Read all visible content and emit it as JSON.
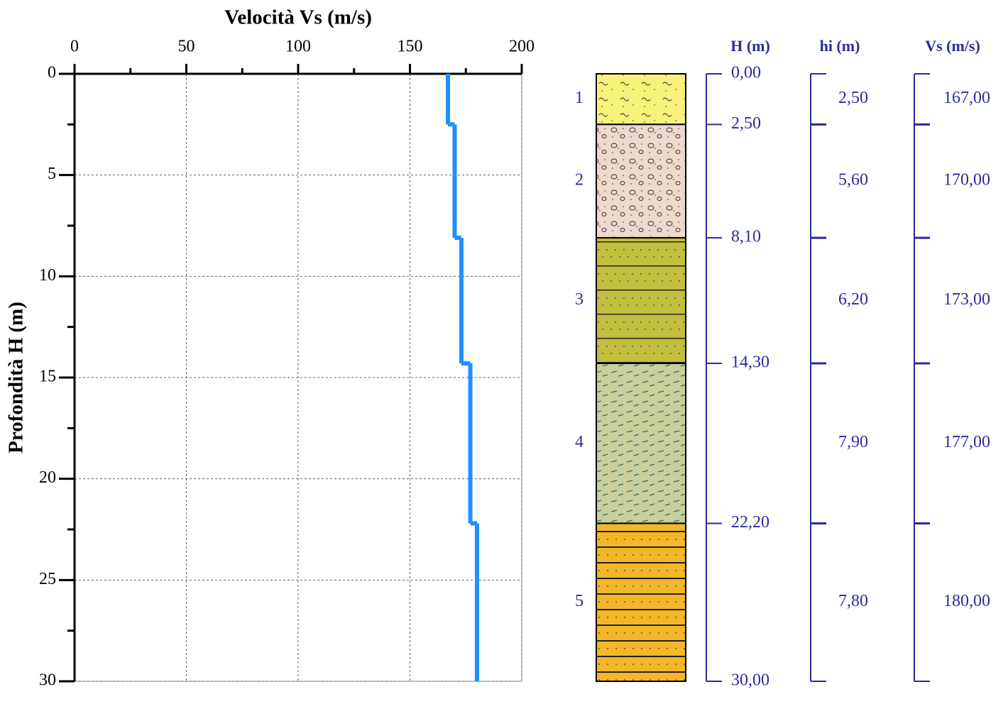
{
  "chart_data": {
    "type": "step-profile",
    "xlabel": "Velocità Vs (m/s)",
    "ylabel": "Profondità H (m)",
    "xlim": [
      0,
      200
    ],
    "xticks": [
      0,
      50,
      100,
      150,
      200
    ],
    "ylim": [
      0,
      30
    ],
    "yticks": [
      0,
      5,
      10,
      15,
      20,
      25,
      30
    ],
    "grid": true,
    "color": "#1e90ff",
    "column_headers": [
      "H (m)",
      "hi (m)",
      "Vs (m/s)"
    ],
    "layers": [
      "1",
      "2",
      "3",
      "4",
      "5"
    ],
    "depths": [
      {
        "value": 0,
        "label": "0,00"
      },
      {
        "value": 2.5,
        "label": "2,50"
      },
      {
        "value": 8.1,
        "label": "8,10"
      },
      {
        "value": 14.3,
        "label": "14,30"
      },
      {
        "value": 22.2,
        "label": "22,20"
      },
      {
        "value": 30,
        "label": "30,00"
      }
    ],
    "thicknesses": [
      {
        "value": 2.5,
        "label": "2,50"
      },
      {
        "value": 5.6,
        "label": "5,60"
      },
      {
        "value": 6.2,
        "label": "6,20"
      },
      {
        "value": 7.9,
        "label": "7,90"
      },
      {
        "value": 7.8,
        "label": "7,80"
      }
    ],
    "velocities": [
      {
        "value": 167,
        "label": "167,00"
      },
      {
        "value": 170,
        "label": "170,00"
      },
      {
        "value": 173,
        "label": "173,00"
      },
      {
        "value": 177,
        "label": "177,00"
      },
      {
        "value": 180,
        "label": "180,00"
      }
    ]
  }
}
